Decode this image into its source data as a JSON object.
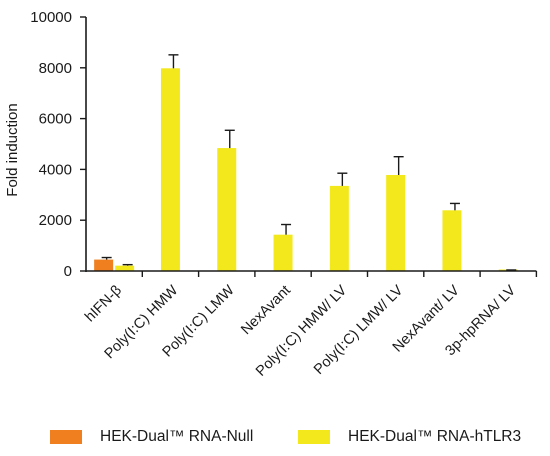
{
  "chart_data": {
    "type": "bar",
    "ylabel": "Fold induction",
    "ylim": [
      0,
      10000
    ],
    "yticks": [
      "0",
      "2000",
      "4000",
      "6000",
      "8000",
      "10000"
    ],
    "categories": [
      "hIFN-β",
      "Poly(I:C) HMW",
      "Poly(I:C) LMW",
      "NexAvant",
      "Poly(I:C) HMW/ LV",
      "Poly(I:C) LMW/ LV",
      "NexAvant/ LV",
      "3p-hpRNA/ LV"
    ],
    "series": [
      {
        "name": "HEK-Dual™ RNA-Null",
        "color": "#f07f1f",
        "values": [
          450,
          null,
          null,
          null,
          null,
          null,
          null,
          null
        ],
        "errors": [
          80,
          null,
          null,
          null,
          null,
          null,
          null,
          null
        ]
      },
      {
        "name": "HEK-Dual™ RNA-hTLR3",
        "color": "#f2e81c",
        "values": [
          210,
          7980,
          4840,
          1430,
          3350,
          3780,
          2390,
          30
        ],
        "errors": [
          40,
          530,
          700,
          400,
          500,
          720,
          270,
          10
        ]
      }
    ],
    "grid": false,
    "legend_position": "bottom"
  }
}
